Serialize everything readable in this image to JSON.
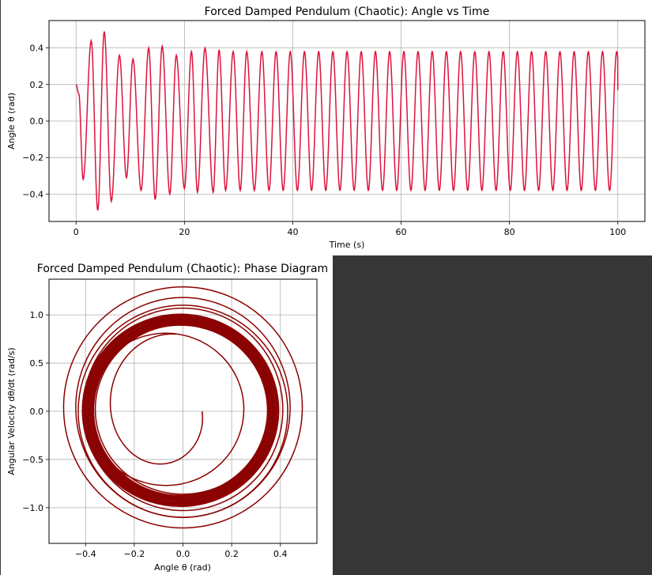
{
  "chart_data": [
    {
      "type": "line",
      "title": "Forced Damped Pendulum (Chaotic): Angle vs Time",
      "xlabel": "Time (s)",
      "ylabel": "Angle θ (rad)",
      "xlim": [
        -5,
        105
      ],
      "ylim": [
        -0.55,
        0.55
      ],
      "xticks": [
        0,
        20,
        40,
        60,
        80,
        100
      ],
      "xtick_labels": [
        "0",
        "20",
        "40",
        "60",
        "80",
        "100"
      ],
      "yticks": [
        -0.4,
        -0.2,
        0.0,
        0.2,
        0.4
      ],
      "ytick_labels": [
        "−0.4",
        "−0.2",
        "0.0",
        "0.2",
        "0.4"
      ],
      "grid": true,
      "line_color": "#dc143c",
      "series": [
        {
          "x": [
            0,
            0.5,
            1.3,
            2.8,
            4.0,
            5.2,
            6.5,
            8.0,
            9.3,
            10.5,
            12.0,
            13.4,
            14.6,
            15.9,
            17.3,
            18.5,
            20.0,
            21.3,
            22.4,
            23.8,
            25.3,
            26.4,
            27.6,
            29.0,
            30.3,
            31.5,
            32.9,
            34.3
          ],
          "y": [
            0.2,
            0.15,
            -0.32,
            0.44,
            -0.49,
            0.49,
            -0.44,
            0.36,
            -0.31,
            0.34,
            -0.38,
            0.4,
            -0.43,
            0.41,
            -0.4,
            0.36,
            -0.37,
            0.38,
            -0.39,
            0.4,
            -0.39,
            0.39,
            -0.38,
            0.38,
            -0.38,
            0.38,
            -0.38,
            0.38
          ]
        }
      ],
      "steady_state": {
        "from": 34.3,
        "to": 100,
        "amplitude": 0.38,
        "period": 2.62,
        "final_value": 0.17
      }
    },
    {
      "type": "line",
      "title": "Forced Damped Pendulum (Chaotic): Phase Diagram",
      "xlabel": "Angle θ (rad)",
      "ylabel": "Angular Velocity dθ/dt (rad/s)",
      "xlim": [
        -0.55,
        0.55
      ],
      "ylim": [
        -1.37,
        1.37
      ],
      "xticks": [
        -0.4,
        -0.2,
        0.0,
        0.2,
        0.4
      ],
      "xtick_labels": [
        "−0.4",
        "−0.2",
        "0.0",
        "0.2",
        "0.4"
      ],
      "yticks": [
        -1.0,
        -0.5,
        0.0,
        0.5,
        1.0
      ],
      "ytick_labels": [
        "−1.0",
        "−0.5",
        "0.0",
        "0.5",
        "1.0"
      ],
      "grid": true,
      "line_color": "#8b0000",
      "start_point": [
        0.2,
        0.0
      ],
      "loops": [
        {
          "a": 0.32,
          "b": 0.79,
          "cx": -0.07,
          "cy": 0.02
        },
        {
          "a": 0.44,
          "b": 1.14,
          "cx": 0.0,
          "cy": 0.04
        },
        {
          "a": 0.49,
          "b": 1.25,
          "cx": 0.0,
          "cy": 0.04
        },
        {
          "a": 0.37,
          "b": 0.97,
          "cx": 0.0,
          "cy": 0.01
        },
        {
          "a": 0.41,
          "b": 1.05,
          "cx": 0.0,
          "cy": 0.02
        },
        {
          "a": 0.36,
          "b": 0.88,
          "cx": 0.0,
          "cy": 0.02
        },
        {
          "a": 0.43,
          "b": 1.1,
          "cx": 0.0,
          "cy": 0.0
        },
        {
          "a": 0.37,
          "b": 0.92,
          "cx": 0.0,
          "cy": 0.0
        }
      ],
      "limit_cycle": {
        "a": 0.38,
        "b": 0.94,
        "cx": -0.01,
        "cy": 0.01
      }
    }
  ]
}
